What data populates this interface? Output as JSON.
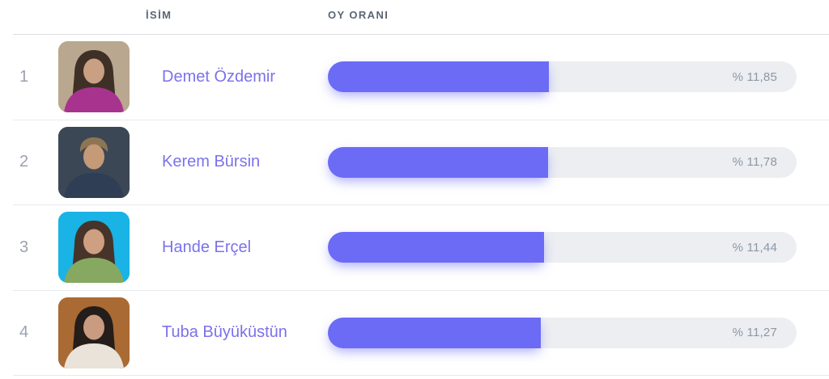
{
  "header": {
    "name_label": "İSİM",
    "votes_label": "OY ORANI"
  },
  "colors": {
    "accent": "#6c6bf6",
    "bar_track": "#eceef1",
    "name_link": "#7b72ea",
    "header_text": "#5a6676",
    "rank_text": "#9ba2ae",
    "value_text": "#8d97a6",
    "divider": "#e7eaee"
  },
  "rows": [
    {
      "rank": "1",
      "name": "Demet Özdemir",
      "value": 11.85,
      "value_display": "% 11,85",
      "fill_percent": 47.2,
      "avatar_colors": {
        "bg": "#b9a78f",
        "hair": "#3e3027",
        "skin": "#c9a083",
        "shirt": "#a8338f"
      }
    },
    {
      "rank": "2",
      "name": "Kerem Bürsin",
      "value": 11.78,
      "value_display": "% 11,78",
      "fill_percent": 47.0,
      "avatar_colors": {
        "bg": "#3c4755",
        "hair": "#8d7553",
        "skin": "#c59a76",
        "shirt": "#2f3d55"
      }
    },
    {
      "rank": "3",
      "name": "Hande Erçel",
      "value": 11.44,
      "value_display": "% 11,44",
      "fill_percent": 46.1,
      "avatar_colors": {
        "bg": "#19b3e6",
        "hair": "#46342a",
        "skin": "#cf9f82",
        "shirt": "#86a861"
      }
    },
    {
      "rank": "4",
      "name": "Tuba Büyüküstün",
      "value": 11.27,
      "value_display": "% 11,27",
      "fill_percent": 45.4,
      "avatar_colors": {
        "bg": "#a96a33",
        "hair": "#241d1a",
        "skin": "#c99b80",
        "shirt": "#e9e3da"
      }
    }
  ]
}
